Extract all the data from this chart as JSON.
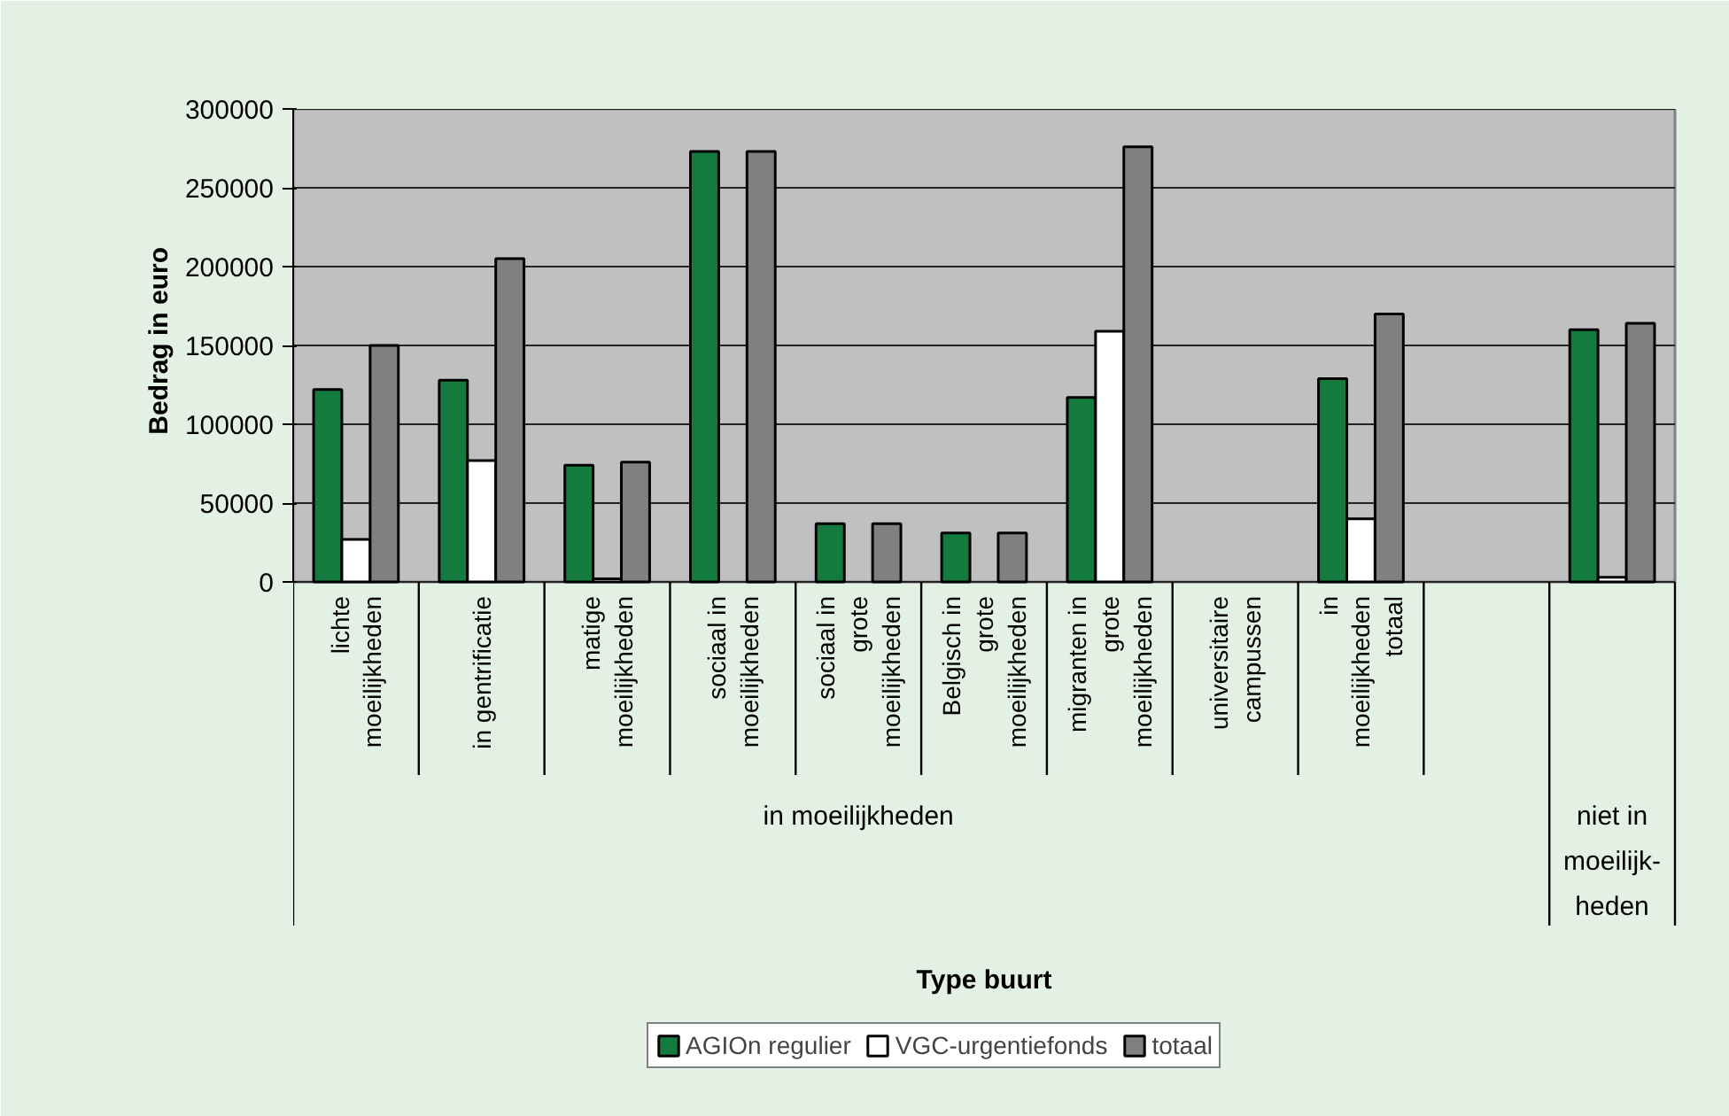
{
  "chart_data": {
    "type": "bar",
    "ylabel": "Bedrag in euro",
    "categories": [
      "lichte\nmoeilijkheden",
      "in gentrificatie",
      "matige\nmoeilijkheden",
      "sociaal in\nmoeilijkheden",
      "sociaal in\ngrote\nmoeilijkheden",
      "Belgisch in\ngrote\nmoeilijkheden",
      "migranten in\ngrote\nmoeilijkheden",
      "universitaire\ncampussen",
      "in\nmoeilijkheden\ntotaal",
      null,
      null
    ],
    "series": [
      {
        "name": "AGIOn regulier",
        "color": "#137b3d",
        "values": [
          122000,
          128000,
          74000,
          273000,
          37000,
          31000,
          117000,
          null,
          129000,
          null,
          160000
        ]
      },
      {
        "name": "VGC-urgentiefonds",
        "color": "#ffffff",
        "values": [
          27000,
          77000,
          2000,
          null,
          null,
          null,
          159000,
          null,
          40000,
          null,
          3000
        ]
      },
      {
        "name": "totaal",
        "color": "#808080",
        "values": [
          150000,
          205000,
          76000,
          273000,
          37000,
          31000,
          276000,
          null,
          170000,
          null,
          164000
        ]
      }
    ],
    "ylim": [
      0,
      300000
    ],
    "yticks": [
      0,
      50000,
      100000,
      150000,
      200000,
      250000,
      300000
    ],
    "grid": "y",
    "legend": "bottom",
    "annotations": [
      "in moeilijkheden",
      "niet in\nmoeilijk-\nheden",
      "Type buurt"
    ]
  }
}
